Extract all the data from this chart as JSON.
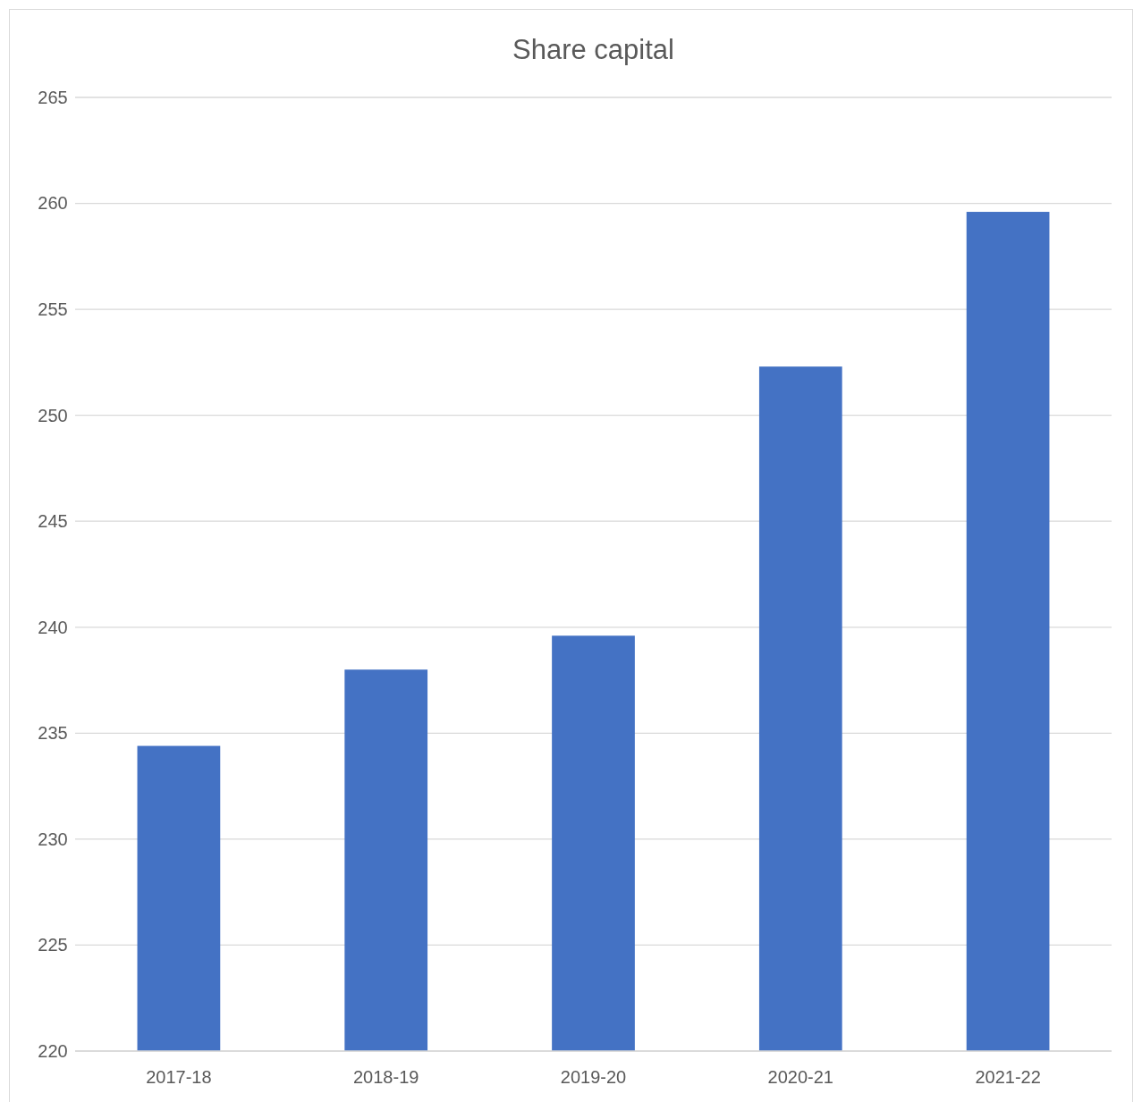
{
  "chart_data": {
    "type": "bar",
    "title": "Share capital",
    "categories": [
      "2017-18",
      "2018-19",
      "2019-20",
      "2020-21",
      "2021-22"
    ],
    "values": [
      234.4,
      238.0,
      239.6,
      252.3,
      259.6
    ],
    "color": "#4472c4",
    "ylim": [
      220,
      265
    ],
    "yticks": [
      220,
      225,
      230,
      235,
      240,
      245,
      250,
      255,
      260,
      265
    ],
    "grid": "y"
  }
}
